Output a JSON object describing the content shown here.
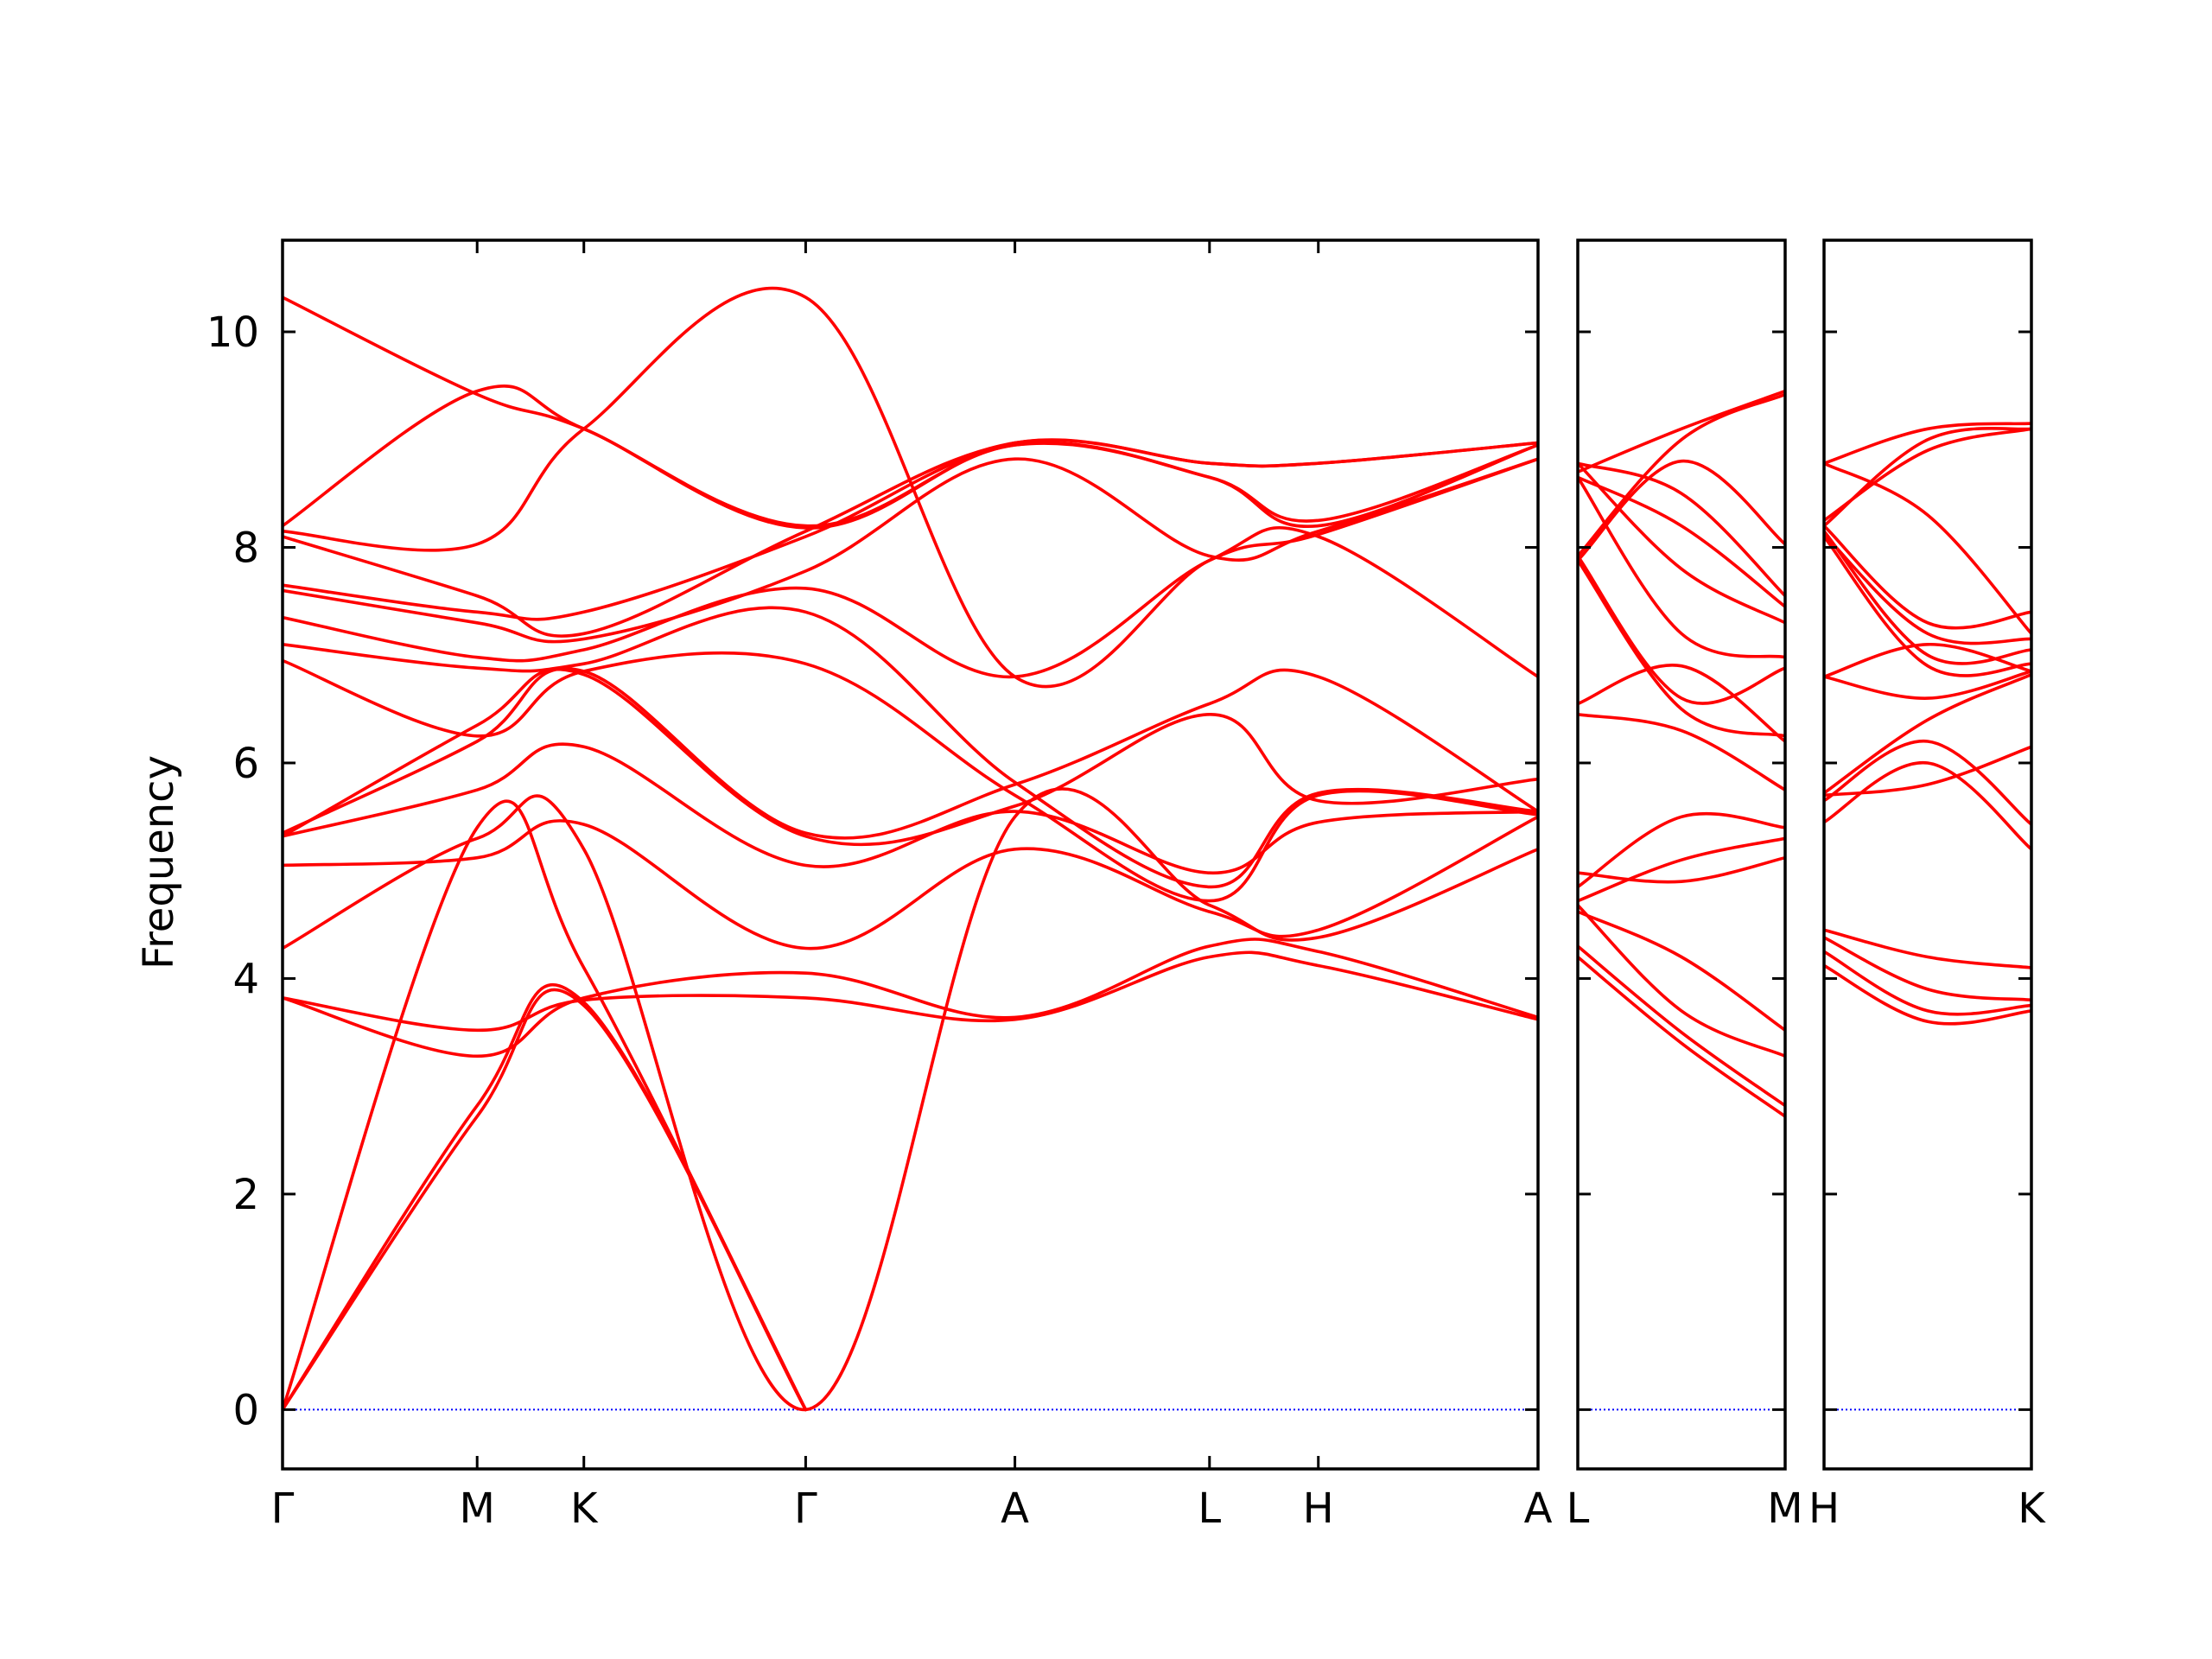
{
  "chart_data": {
    "type": "line",
    "title": "",
    "xlabel": "",
    "ylabel": "Frequency",
    "ylim": [
      -0.55,
      10.85
    ],
    "yticks": [
      0,
      2,
      4,
      6,
      8,
      10
    ],
    "grid": false,
    "line_color": "#ff0000",
    "zero_line_color": "#0000ff",
    "panels": [
      {
        "xlim": [
          0,
          6.0
        ],
        "ticks": [
          {
            "x": 0.0,
            "label": "Γ"
          },
          {
            "x": 0.93,
            "label": "M"
          },
          {
            "x": 1.44,
            "label": "K"
          },
          {
            "x": 2.5,
            "label": "Γ"
          },
          {
            "x": 3.5,
            "label": "A"
          },
          {
            "x": 4.43,
            "label": "L"
          },
          {
            "x": 4.95,
            "label": "H"
          },
          {
            "x": 6.0,
            "label": "A"
          }
        ],
        "bands": [
          [
            [
              0,
              0
            ],
            [
              0.93,
              2.72
            ],
            [
              1.44,
              3.75
            ],
            [
              2.5,
              0
            ]
          ],
          [
            [
              0,
              0
            ],
            [
              0.93,
              2.82
            ],
            [
              1.44,
              3.78
            ],
            [
              2.5,
              0
            ]
          ],
          [
            [
              0,
              0
            ],
            [
              0.93,
              5.4
            ],
            [
              1.44,
              4.1
            ],
            [
              2.5,
              0
            ]
          ],
          [
            [
              0,
              3.82
            ],
            [
              0.93,
              3.52
            ],
            [
              1.44,
              3.8
            ],
            [
              2.5,
              3.82
            ],
            [
              3.5,
              3.62
            ],
            [
              4.43,
              4.2
            ],
            [
              4.95,
              4.12
            ],
            [
              6.0,
              3.62
            ]
          ],
          [
            [
              0,
              3.82
            ],
            [
              0.93,
              3.28
            ],
            [
              1.44,
              3.82
            ],
            [
              2.5,
              4.05
            ],
            [
              3.5,
              3.64
            ],
            [
              4.43,
              4.3
            ],
            [
              4.95,
              4.25
            ],
            [
              6.0,
              3.64
            ]
          ],
          [
            [
              0,
              4.28
            ],
            [
              0.93,
              5.3
            ],
            [
              1.44,
              5.2
            ],
            [
              2.5,
              0
            ],
            [
              3.5,
              5.5
            ],
            [
              4.43,
              4.68
            ],
            [
              4.95,
              4.38
            ],
            [
              6.0,
              5.2
            ]
          ],
          [
            [
              0,
              5.05
            ],
            [
              0.93,
              5.12
            ],
            [
              1.44,
              5.43
            ],
            [
              2.5,
              4.28
            ],
            [
              3.5,
              5.2
            ],
            [
              4.43,
              4.62
            ],
            [
              4.95,
              4.45
            ],
            [
              6.0,
              5.5
            ]
          ],
          [
            [
              0,
              5.32
            ],
            [
              0.93,
              5.75
            ],
            [
              1.44,
              6.15
            ],
            [
              2.5,
              5.05
            ],
            [
              3.5,
              5.55
            ],
            [
              4.43,
              4.98
            ],
            [
              4.95,
              5.45
            ],
            [
              6.0,
              5.55
            ]
          ],
          [
            [
              0,
              5.32
            ],
            [
              0.93,
              6.35
            ],
            [
              1.44,
              6.82
            ],
            [
              2.5,
              5.32
            ],
            [
              3.5,
              5.6
            ],
            [
              4.43,
              6.45
            ],
            [
              4.95,
              5.65
            ],
            [
              6.0,
              5.85
            ]
          ],
          [
            [
              0,
              5.35
            ],
            [
              0.93,
              6.2
            ],
            [
              1.44,
              6.85
            ],
            [
              2.5,
              5.35
            ],
            [
              3.5,
              5.8
            ],
            [
              4.43,
              6.55
            ],
            [
              4.95,
              6.8
            ],
            [
              6.0,
              5.55
            ]
          ],
          [
            [
              0,
              6.95
            ],
            [
              0.93,
              6.25
            ],
            [
              1.44,
              6.85
            ],
            [
              2.5,
              6.92
            ],
            [
              3.5,
              5.7
            ],
            [
              4.43,
              4.72
            ],
            [
              4.95,
              5.7
            ],
            [
              6.0,
              5.52
            ]
          ],
          [
            [
              0,
              7.1
            ],
            [
              0.93,
              6.88
            ],
            [
              1.44,
              6.92
            ],
            [
              2.5,
              7.4
            ],
            [
              3.5,
              5.82
            ],
            [
              4.43,
              4.85
            ],
            [
              4.95,
              5.72
            ],
            [
              6.0,
              5.55
            ]
          ],
          [
            [
              0,
              7.35
            ],
            [
              0.93,
              6.98
            ],
            [
              1.44,
              7.05
            ],
            [
              2.5,
              7.62
            ],
            [
              3.5,
              6.8
            ],
            [
              4.43,
              7.88
            ],
            [
              4.95,
              8.1
            ],
            [
              6.0,
              6.8
            ]
          ],
          [
            [
              0,
              7.6
            ],
            [
              0.93,
              7.3
            ],
            [
              1.44,
              7.15
            ],
            [
              2.5,
              7.78
            ],
            [
              3.5,
              8.82
            ],
            [
              4.43,
              7.92
            ],
            [
              4.95,
              8.15
            ],
            [
              6.0,
              8.82
            ]
          ],
          [
            [
              0,
              7.65
            ],
            [
              0.93,
              7.4
            ],
            [
              1.44,
              7.4
            ],
            [
              2.5,
              8.1
            ],
            [
              3.5,
              8.95
            ],
            [
              4.43,
              8.65
            ],
            [
              4.95,
              8.25
            ],
            [
              6.0,
              8.95
            ]
          ],
          [
            [
              0,
              8.1
            ],
            [
              0.93,
              7.55
            ],
            [
              1.44,
              7.2
            ],
            [
              2.5,
              8.15
            ],
            [
              3.5,
              8.97
            ],
            [
              4.43,
              8.78
            ],
            [
              4.95,
              8.78
            ],
            [
              6.0,
              8.97
            ]
          ],
          [
            [
              0,
              8.15
            ],
            [
              0.93,
              8.03
            ],
            [
              1.44,
              9.1
            ],
            [
              2.5,
              10.32
            ],
            [
              3.5,
              6.8
            ],
            [
              4.43,
              7.88
            ],
            [
              4.95,
              8.12
            ],
            [
              6.0,
              8.82
            ]
          ],
          [
            [
              0,
              8.2
            ],
            [
              0.93,
              9.45
            ],
            [
              1.44,
              9.1
            ],
            [
              2.5,
              8.2
            ],
            [
              3.5,
              8.95
            ],
            [
              4.43,
              8.65
            ],
            [
              4.95,
              8.2
            ],
            [
              6.0,
              8.95
            ]
          ],
          [
            [
              0,
              10.32
            ],
            [
              0.93,
              9.42
            ],
            [
              1.44,
              9.1
            ],
            [
              2.5,
              8.18
            ],
            [
              3.5,
              8.97
            ],
            [
              4.43,
              8.78
            ],
            [
              4.95,
              8.78
            ],
            [
              6.0,
              8.97
            ]
          ]
        ]
      },
      {
        "xlim": [
          0,
          1.0
        ],
        "ticks": [
          {
            "x": 0.0,
            "label": "L"
          },
          {
            "x": 1.0,
            "label": "M"
          }
        ],
        "bands": [
          [
            [
              0,
              4.2
            ],
            [
              0.5,
              3.4
            ],
            [
              1.0,
              2.72
            ]
          ],
          [
            [
              0,
              4.3
            ],
            [
              0.5,
              3.5
            ],
            [
              1.0,
              2.82
            ]
          ],
          [
            [
              0,
              4.68
            ],
            [
              0.5,
              3.7
            ],
            [
              1.0,
              3.28
            ]
          ],
          [
            [
              0,
              4.62
            ],
            [
              0.5,
              4.2
            ],
            [
              1.0,
              3.52
            ]
          ],
          [
            [
              0,
              4.98
            ],
            [
              0.5,
              4.9
            ],
            [
              1.0,
              5.12
            ]
          ],
          [
            [
              0,
              4.72
            ],
            [
              0.5,
              5.1
            ],
            [
              1.0,
              5.3
            ]
          ],
          [
            [
              0,
              4.85
            ],
            [
              0.5,
              5.5
            ],
            [
              1.0,
              5.4
            ]
          ],
          [
            [
              0,
              6.45
            ],
            [
              0.5,
              6.3
            ],
            [
              1.0,
              5.75
            ]
          ],
          [
            [
              0,
              6.55
            ],
            [
              0.5,
              6.9
            ],
            [
              1.0,
              6.2
            ]
          ],
          [
            [
              0,
              7.88
            ],
            [
              0.5,
              6.5
            ],
            [
              1.0,
              6.25
            ]
          ],
          [
            [
              0,
              7.92
            ],
            [
              0.5,
              6.6
            ],
            [
              1.0,
              6.88
            ]
          ],
          [
            [
              0,
              8.65
            ],
            [
              0.5,
              7.2
            ],
            [
              1.0,
              6.98
            ]
          ],
          [
            [
              0,
              8.78
            ],
            [
              0.5,
              7.8
            ],
            [
              1.0,
              7.3
            ]
          ],
          [
            [
              0,
              8.65
            ],
            [
              0.5,
              8.2
            ],
            [
              1.0,
              7.45
            ]
          ],
          [
            [
              0,
              8.78
            ],
            [
              0.5,
              8.5
            ],
            [
              1.0,
              7.55
            ]
          ],
          [
            [
              0,
              7.88
            ],
            [
              0.5,
              8.8
            ],
            [
              1.0,
              8.03
            ]
          ],
          [
            [
              0,
              7.92
            ],
            [
              0.5,
              9.0
            ],
            [
              1.0,
              9.42
            ]
          ],
          [
            [
              0,
              8.7
            ],
            [
              0.5,
              9.1
            ],
            [
              1.0,
              9.45
            ]
          ]
        ]
      },
      {
        "xlim": [
          0,
          1.0
        ],
        "ticks": [
          {
            "x": 0.0,
            "label": "H"
          },
          {
            "x": 1.0,
            "label": "K"
          }
        ],
        "bands": [
          [
            [
              0,
              4.12
            ],
            [
              0.5,
              3.6
            ],
            [
              1.0,
              3.7
            ]
          ],
          [
            [
              0,
              4.25
            ],
            [
              0.5,
              3.7
            ],
            [
              1.0,
              3.75
            ]
          ],
          [
            [
              0,
              4.38
            ],
            [
              0.5,
              3.9
            ],
            [
              1.0,
              3.8
            ]
          ],
          [
            [
              0,
              4.45
            ],
            [
              0.5,
              4.2
            ],
            [
              1.0,
              4.1
            ]
          ],
          [
            [
              0,
              5.45
            ],
            [
              0.5,
              6.0
            ],
            [
              1.0,
              5.2
            ]
          ],
          [
            [
              0,
              5.65
            ],
            [
              0.5,
              6.2
            ],
            [
              1.0,
              5.43
            ]
          ],
          [
            [
              0,
              5.7
            ],
            [
              0.5,
              5.8
            ],
            [
              1.0,
              6.15
            ]
          ],
          [
            [
              0,
              5.72
            ],
            [
              0.5,
              6.4
            ],
            [
              1.0,
              6.82
            ]
          ],
          [
            [
              0,
              6.8
            ],
            [
              0.5,
              6.6
            ],
            [
              1.0,
              6.85
            ]
          ],
          [
            [
              0,
              6.8
            ],
            [
              0.5,
              7.1
            ],
            [
              1.0,
              6.85
            ]
          ],
          [
            [
              0,
              8.1
            ],
            [
              0.5,
              6.9
            ],
            [
              1.0,
              6.92
            ]
          ],
          [
            [
              0,
              8.15
            ],
            [
              0.5,
              7.0
            ],
            [
              1.0,
              7.05
            ]
          ],
          [
            [
              0,
              8.12
            ],
            [
              0.5,
              7.2
            ],
            [
              1.0,
              7.15
            ]
          ],
          [
            [
              0,
              8.2
            ],
            [
              0.5,
              7.3
            ],
            [
              1.0,
              7.4
            ]
          ],
          [
            [
              0,
              8.78
            ],
            [
              0.5,
              8.3
            ],
            [
              1.0,
              7.2
            ]
          ],
          [
            [
              0,
              8.25
            ],
            [
              0.5,
              8.9
            ],
            [
              1.0,
              9.1
            ]
          ],
          [
            [
              0,
              8.2
            ],
            [
              0.5,
              9.0
            ],
            [
              1.0,
              9.1
            ]
          ],
          [
            [
              0,
              8.78
            ],
            [
              0.5,
              9.1
            ],
            [
              1.0,
              9.15
            ]
          ]
        ]
      }
    ]
  }
}
